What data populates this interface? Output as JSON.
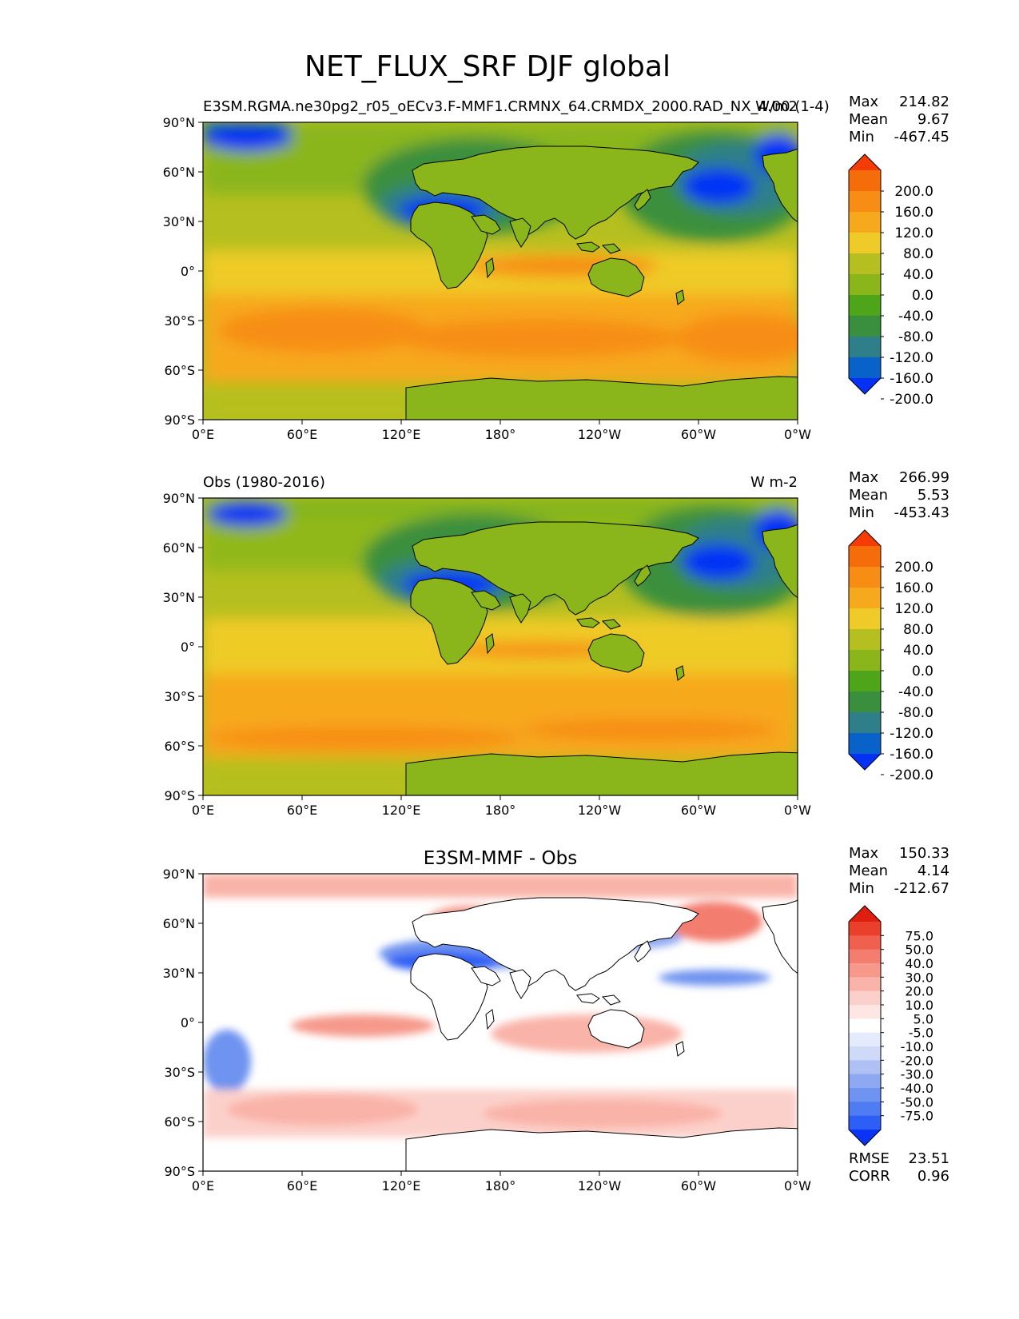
{
  "figure_title": "NET_FLUX_SRF DJF global",
  "colors": {
    "main_levels": [
      "#0531f6",
      "#0962c9",
      "#2f7f8a",
      "#3a8f3e",
      "#4ea51a",
      "#8ab61b",
      "#b5bf1f",
      "#efcb27",
      "#f7a91d",
      "#f78d14",
      "#f56d0a",
      "#f53c06"
    ],
    "diff_levels": [
      "#0b33f5",
      "#2d5ef5",
      "#4f7cf2",
      "#6e93f0",
      "#8ea9f2",
      "#afc1f4",
      "#cfdaf8",
      "#e3ebfc",
      "#ffffff",
      "#fde6e3",
      "#fcd0ca",
      "#f9b3a8",
      "#f6998b",
      "#f37d6e",
      "#f0604f",
      "#ea3f2b",
      "#e01e10"
    ],
    "coastline": "#000000"
  },
  "chart_data": [
    {
      "type": "heatmap",
      "title_left": "E3SM.RGMA.ne30pg2_r05_oECv3.F-MMF1.CRMNX_64.CRMDX_2000.RAD_NX_4.00 (1-4)",
      "title_right": "W/m2",
      "title_center": "",
      "stats": {
        "Max": "214.82",
        "Mean": "9.67",
        "Min": "-467.45"
      },
      "xticks": [
        "0°E",
        "60°E",
        "120°E",
        "180°",
        "120°W",
        "60°W",
        "0°W"
      ],
      "yticks": [
        "90°N",
        "60°N",
        "30°N",
        "0°",
        "30°S",
        "60°S",
        "90°S"
      ],
      "colorbar_labels": [
        "200.0",
        "160.0",
        "120.0",
        "80.0",
        "40.0",
        "0.0",
        "-40.0",
        "-80.0",
        "-120.0",
        "-160.0",
        "-200.0"
      ],
      "colorbar_extend": "both",
      "value_range": [
        -467.45,
        214.82
      ]
    },
    {
      "type": "heatmap",
      "title_left": "Obs (1980-2016)",
      "title_right": "W m-2",
      "title_center": "",
      "stats": {
        "Max": "266.99",
        "Mean": "5.53",
        "Min": "-453.43"
      },
      "xticks": [
        "0°E",
        "60°E",
        "120°E",
        "180°",
        "120°W",
        "60°W",
        "0°W"
      ],
      "yticks": [
        "90°N",
        "60°N",
        "30°N",
        "0°",
        "30°S",
        "60°S",
        "90°S"
      ],
      "colorbar_labels": [
        "200.0",
        "160.0",
        "120.0",
        "80.0",
        "40.0",
        "0.0",
        "-40.0",
        "-80.0",
        "-120.0",
        "-160.0",
        "-200.0"
      ],
      "colorbar_extend": "both",
      "value_range": [
        -453.43,
        266.99
      ]
    },
    {
      "type": "heatmap",
      "title_left": "",
      "title_right": "",
      "title_center": "E3SM-MMF - Obs",
      "stats": {
        "Max": "150.33",
        "Mean": "4.14",
        "Min": "-212.67"
      },
      "metrics": {
        "RMSE": "23.51",
        "CORR": "0.96"
      },
      "xticks": [
        "0°E",
        "60°E",
        "120°E",
        "180°",
        "120°W",
        "60°W",
        "0°W"
      ],
      "yticks": [
        "90°N",
        "60°N",
        "30°N",
        "0°",
        "30°S",
        "60°S",
        "90°S"
      ],
      "colorbar_labels": [
        "75.0",
        "50.0",
        "40.0",
        "30.0",
        "20.0",
        "10.0",
        "5.0",
        "-5.0",
        "-10.0",
        "-20.0",
        "-30.0",
        "-40.0",
        "-50.0",
        "-75.0"
      ],
      "colorbar_extend": "both",
      "value_range": [
        -212.67,
        150.33
      ]
    }
  ]
}
